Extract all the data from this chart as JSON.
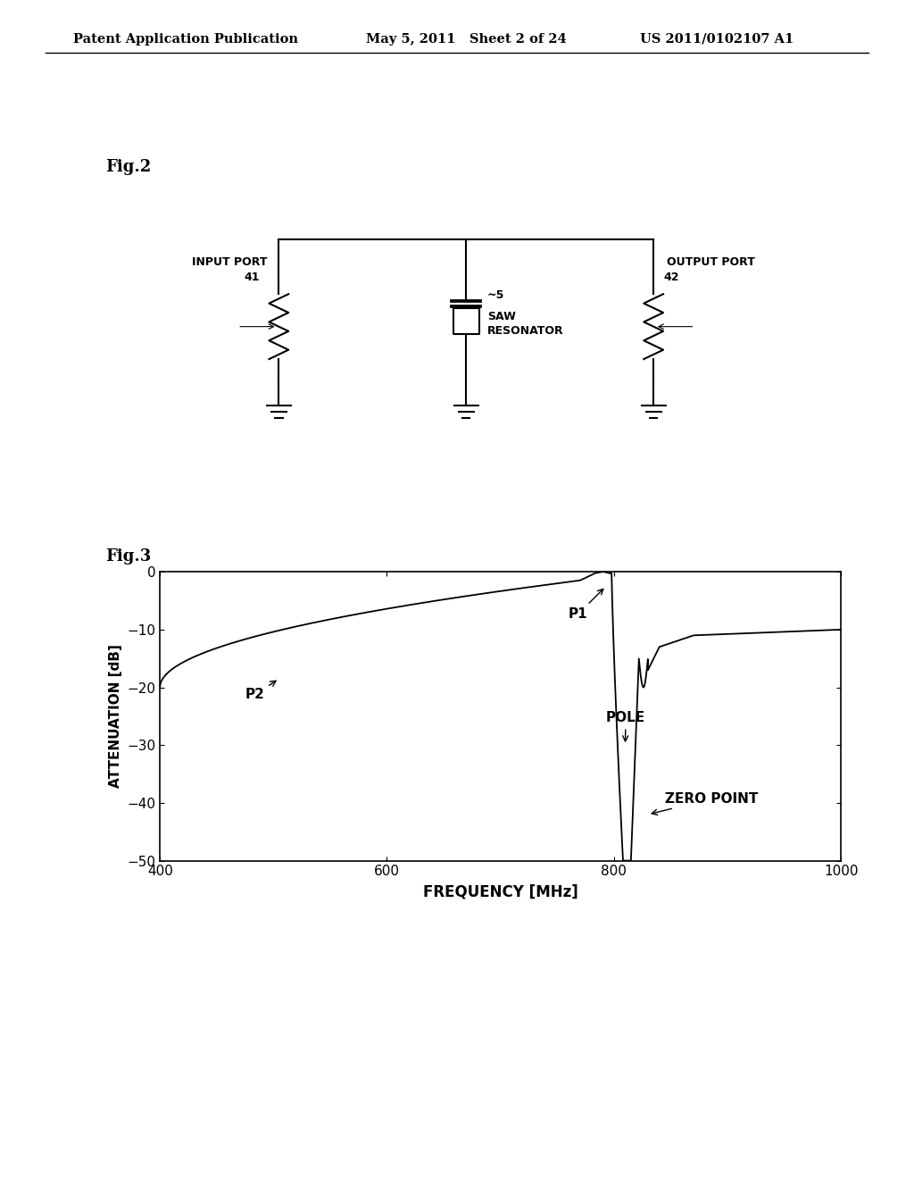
{
  "header_left": "Patent Application Publication",
  "header_mid": "May 5, 2011   Sheet 2 of 24",
  "header_right": "US 2011/0102107 A1",
  "fig2_label": "Fig.2",
  "fig3_label": "Fig.3",
  "graph_xlabel": "FREQUENCY [MHz]",
  "graph_ylabel": "ATTENUATION [dB]",
  "graph_xlim": [
    400,
    1000
  ],
  "graph_ylim": [
    -50,
    0
  ],
  "graph_xticks": [
    400,
    600,
    800,
    1000
  ],
  "graph_yticks": [
    0,
    -10,
    -20,
    -30,
    -40,
    -50
  ],
  "background_color": "#ffffff",
  "line_color": "#000000"
}
